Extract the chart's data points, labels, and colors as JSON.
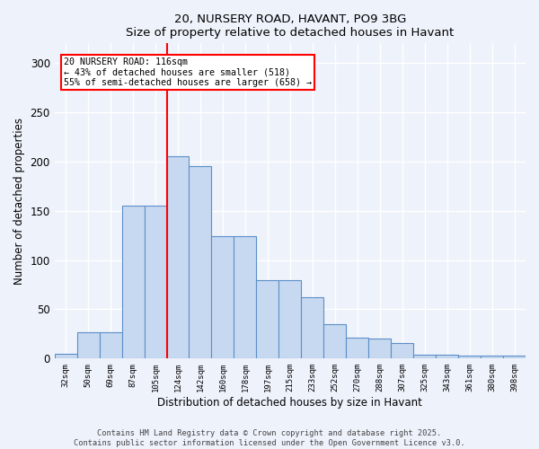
{
  "title1": "20, NURSERY ROAD, HAVANT, PO9 3BG",
  "title2": "Size of property relative to detached houses in Havant",
  "xlabel": "Distribution of detached houses by size in Havant",
  "ylabel": "Number of detached properties",
  "categories": [
    "32sqm",
    "50sqm",
    "69sqm",
    "87sqm",
    "105sqm",
    "124sqm",
    "142sqm",
    "160sqm",
    "178sqm",
    "197sqm",
    "215sqm",
    "233sqm",
    "252sqm",
    "270sqm",
    "288sqm",
    "307sqm",
    "325sqm",
    "343sqm",
    "361sqm",
    "380sqm",
    "398sqm"
  ],
  "values": [
    5,
    27,
    27,
    155,
    155,
    205,
    195,
    124,
    124,
    80,
    80,
    62,
    35,
    21,
    20,
    16,
    4,
    4,
    3,
    3,
    3
  ],
  "bar_color": "#c7d9f0",
  "bar_edge_color": "#5b8fc9",
  "annotation_line1": "20 NURSERY ROAD: 116sqm",
  "annotation_line2": "← 43% of detached houses are smaller (518)",
  "annotation_line3": "55% of semi-detached houses are larger (658) →",
  "red_line_x": 4.5,
  "ylim": [
    0,
    320
  ],
  "yticks": [
    0,
    50,
    100,
    150,
    200,
    250,
    300
  ],
  "footer1": "Contains HM Land Registry data © Crown copyright and database right 2025.",
  "footer2": "Contains public sector information licensed under the Open Government Licence v3.0.",
  "bg_color": "#eef2fb",
  "annotation_box_color": "white",
  "annotation_box_edge_color": "red",
  "red_line_color": "red"
}
